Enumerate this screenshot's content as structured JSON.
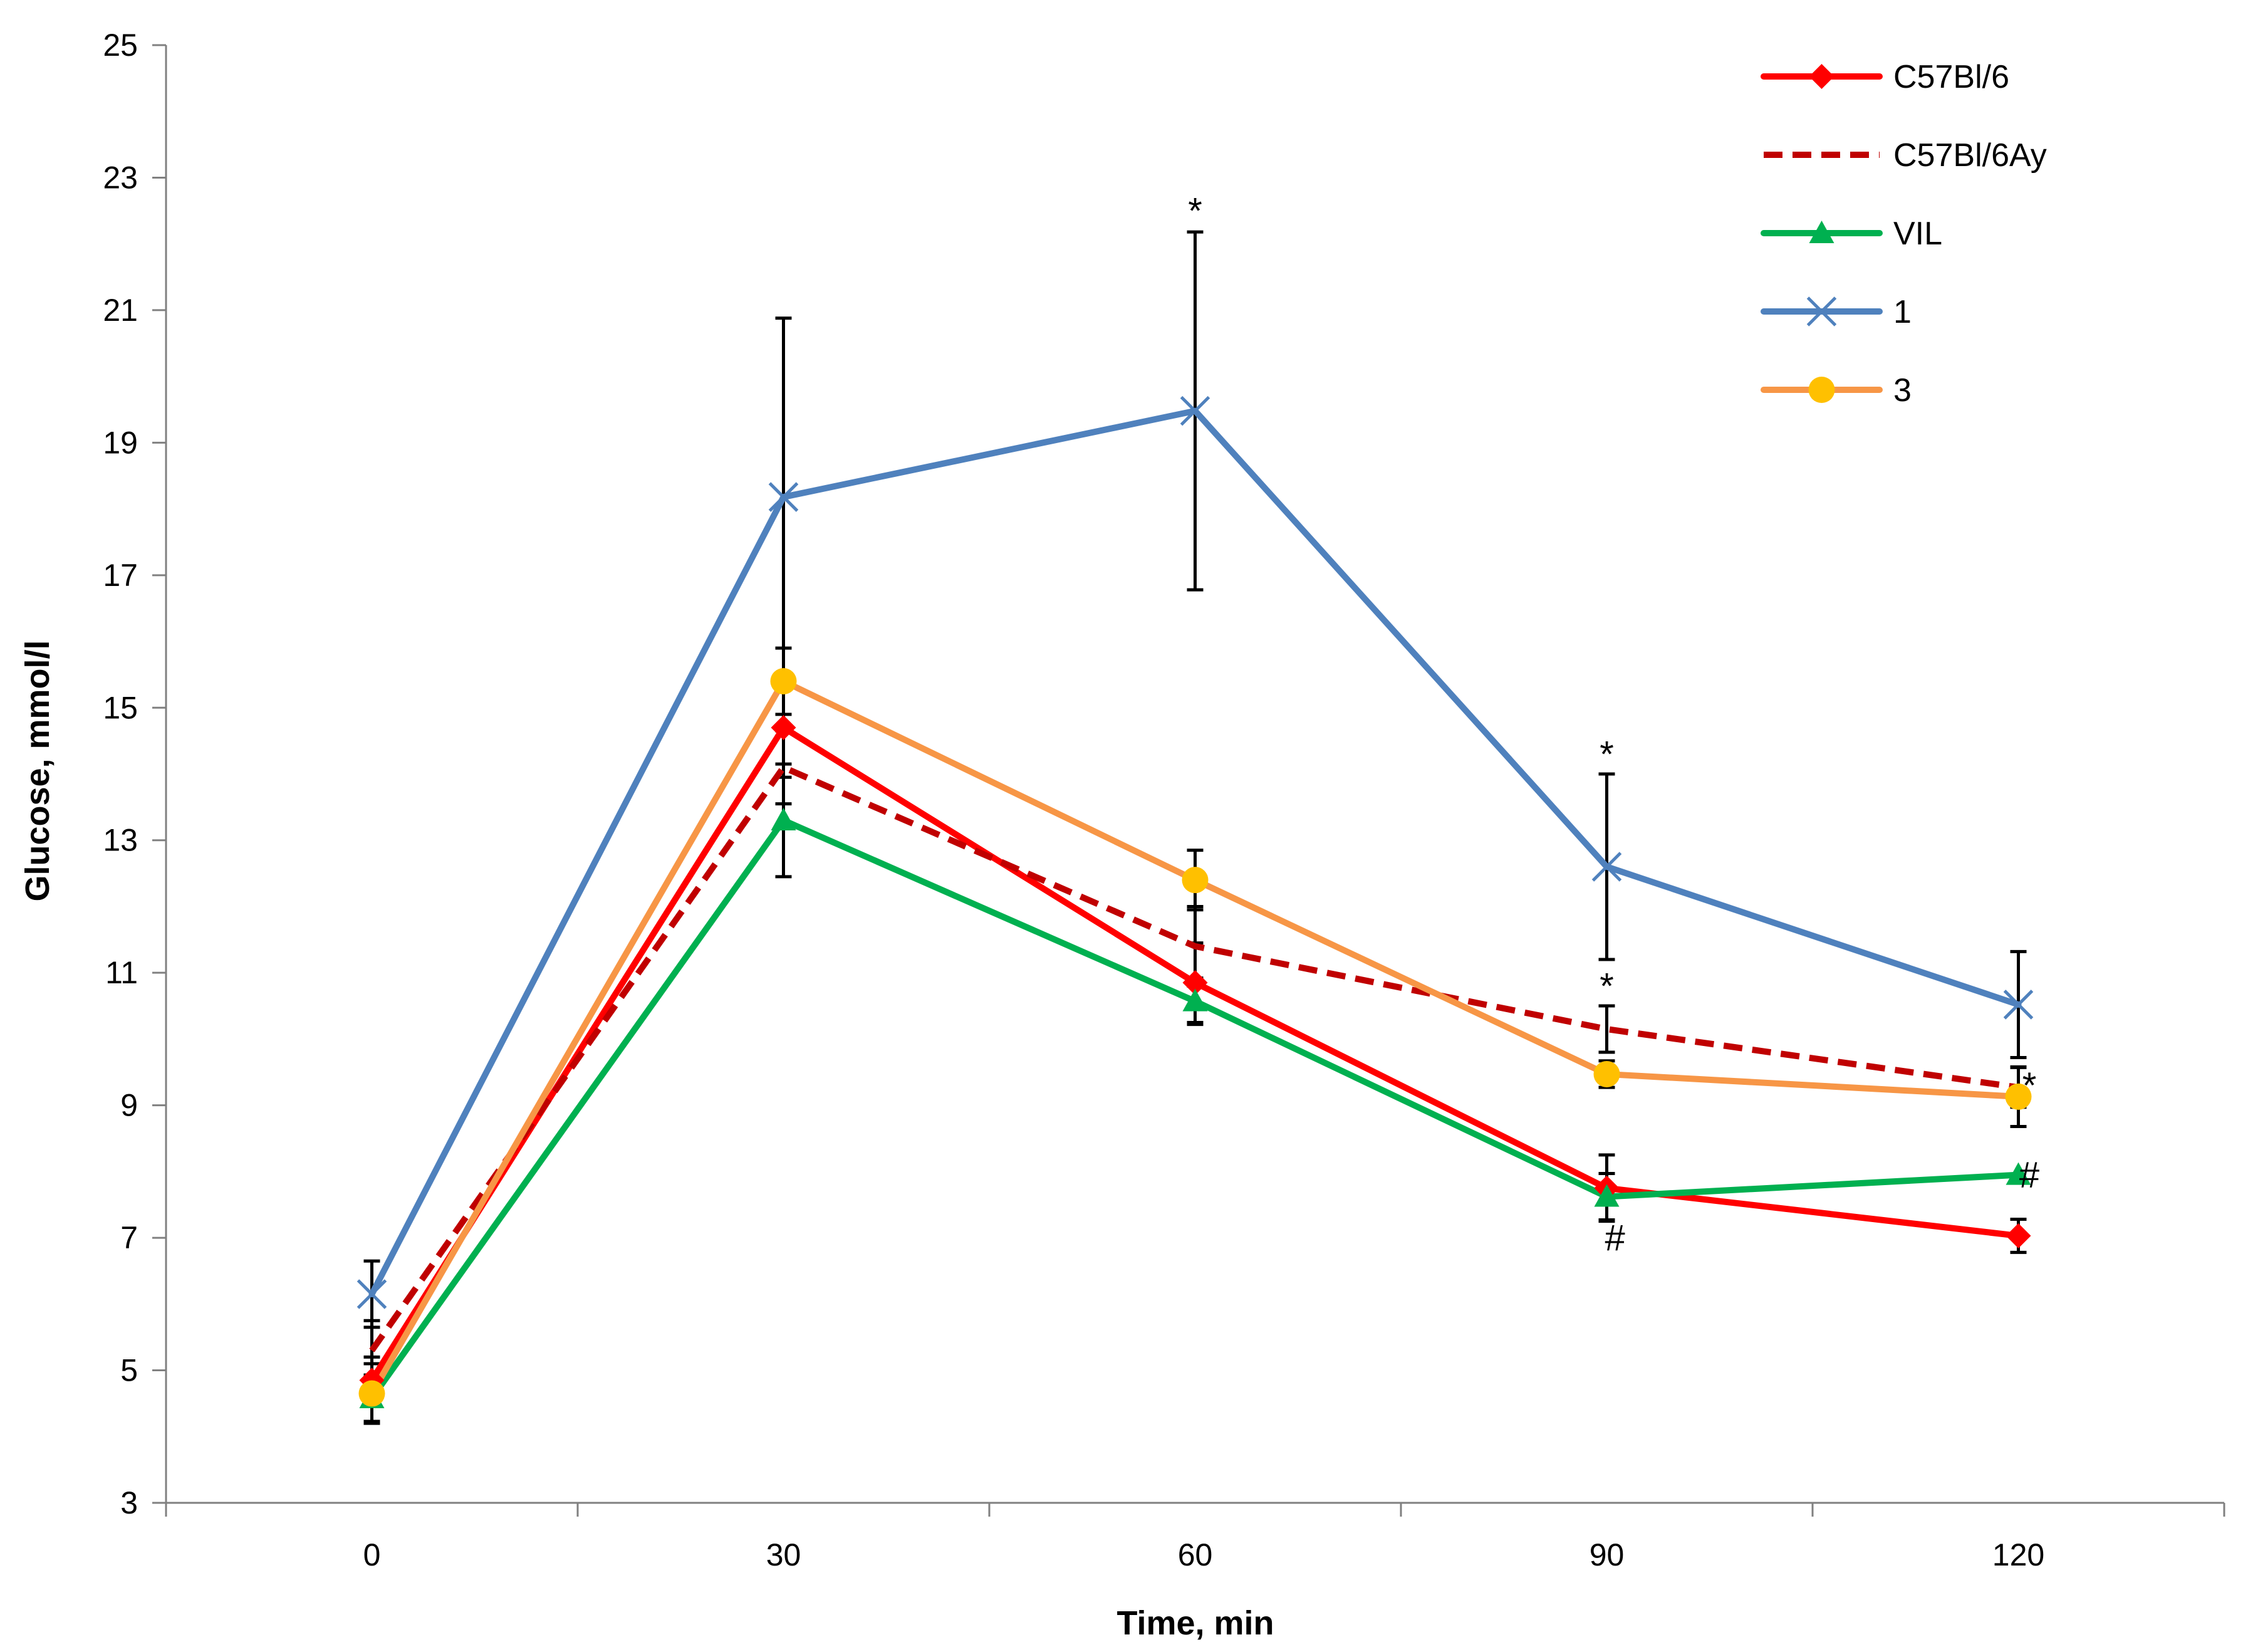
{
  "chart_data": {
    "type": "line",
    "xlabel": "Time, min",
    "ylabel": "Glucose, mmol/l",
    "x": [
      0,
      30,
      60,
      90,
      120
    ],
    "x_tick_labels": [
      "0",
      "30",
      "60",
      "90",
      "120"
    ],
    "xlim": [
      -15,
      135
    ],
    "ylim": [
      3,
      25
    ],
    "y_ticks": [
      3,
      5,
      7,
      9,
      11,
      13,
      15,
      17,
      19,
      21,
      23,
      25
    ],
    "y_tick_labels": [
      "3",
      "5",
      "7",
      "9",
      "11",
      "13",
      "15",
      "17",
      "19",
      "21",
      "23",
      "25"
    ],
    "legend_position": "top-right",
    "grid": false,
    "series": [
      {
        "name": "C57Bl/6",
        "color": "#ff0000",
        "dash": "solid",
        "marker": "diamond",
        "values": [
          4.85,
          14.7,
          10.85,
          7.75,
          7.03
        ],
        "err": [
          0.35,
          0.75,
          0.6,
          0.5,
          0.25
        ]
      },
      {
        "name": "C57Bl/6Ay",
        "color": "#c00000",
        "dash": "dashed",
        "marker": "none",
        "values": [
          5.3,
          14.1,
          11.4,
          10.15,
          9.27
        ],
        "err": [
          0.45,
          0.55,
          0.6,
          0.35,
          0.3
        ]
      },
      {
        "name": "VIL",
        "color": "#00b050",
        "dash": "solid",
        "marker": "triangle",
        "values": [
          4.58,
          13.3,
          10.57,
          7.62,
          7.95
        ],
        "err": [
          0.35,
          0.85,
          0.35,
          0.35,
          0.0
        ]
      },
      {
        "name": "1",
        "color": "#4f81bd",
        "dash": "solid",
        "marker": "x",
        "values": [
          6.15,
          18.18,
          19.48,
          12.6,
          10.52
        ],
        "err": [
          0.5,
          2.7,
          2.7,
          1.4,
          0.8
        ]
      },
      {
        "name": "3",
        "color": "#f79646",
        "marker_color": "#ffc000",
        "dash": "solid",
        "marker": "circle",
        "values": [
          4.65,
          15.4,
          12.4,
          9.47,
          9.13
        ],
        "err": [
          0.45,
          0.5,
          0.45,
          0.2,
          0.45
        ]
      }
    ],
    "annotations": [
      {
        "text": "*",
        "x": 60,
        "y": 22.5
      },
      {
        "text": "*",
        "x": 90,
        "y": 14.3
      },
      {
        "text": "*",
        "x": 90,
        "y": 10.8
      },
      {
        "text": "*",
        "x": 120.8,
        "y": 9.3
      },
      {
        "text": "#",
        "x": 90.6,
        "y": 7.0
      },
      {
        "text": "#",
        "x": 120.8,
        "y": 7.95
      }
    ]
  }
}
